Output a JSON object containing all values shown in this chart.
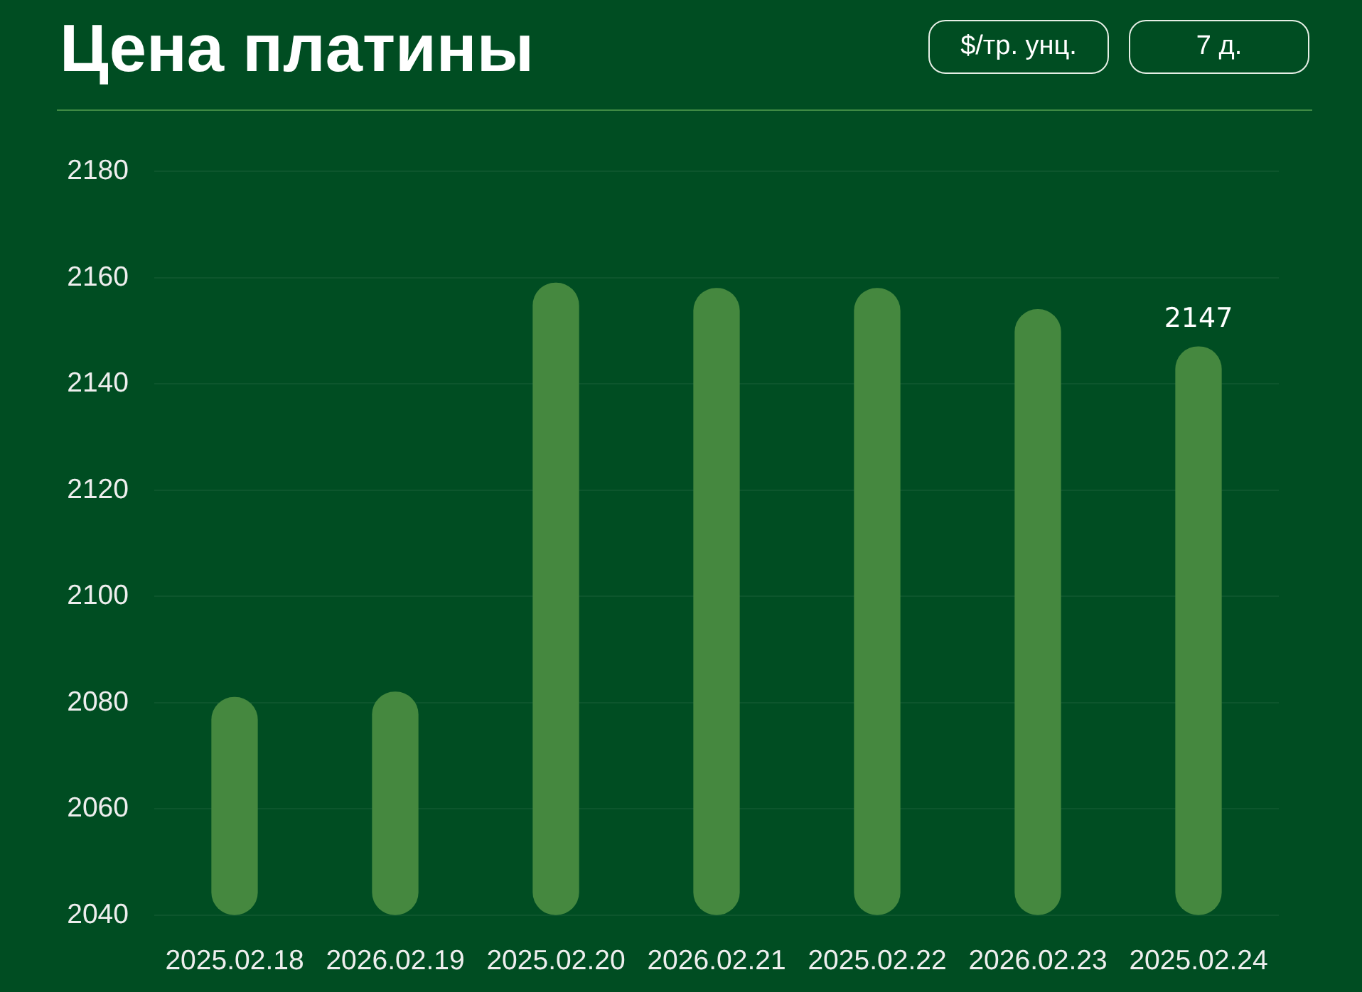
{
  "chart_data": {
    "type": "bar",
    "title": "Цена платины",
    "annotations": [
      "$/тр. унц.",
      "7 д."
    ],
    "categories": [
      "2025.02.18",
      "2026.02.19",
      "2025.02.20",
      "2026.02.21",
      "2025.02.22",
      "2026.02.23",
      "2025.02.24"
    ],
    "values": [
      2081,
      2082,
      2159,
      2158,
      2158,
      2154,
      2147
    ],
    "value_labels": [
      null,
      null,
      null,
      null,
      null,
      null,
      "2147"
    ],
    "color": "#45883f",
    "ylim": [
      2040,
      2180
    ],
    "yticks": [
      2040,
      2060,
      2080,
      2100,
      2120,
      2140,
      2160,
      2180
    ],
    "grid": "y"
  }
}
